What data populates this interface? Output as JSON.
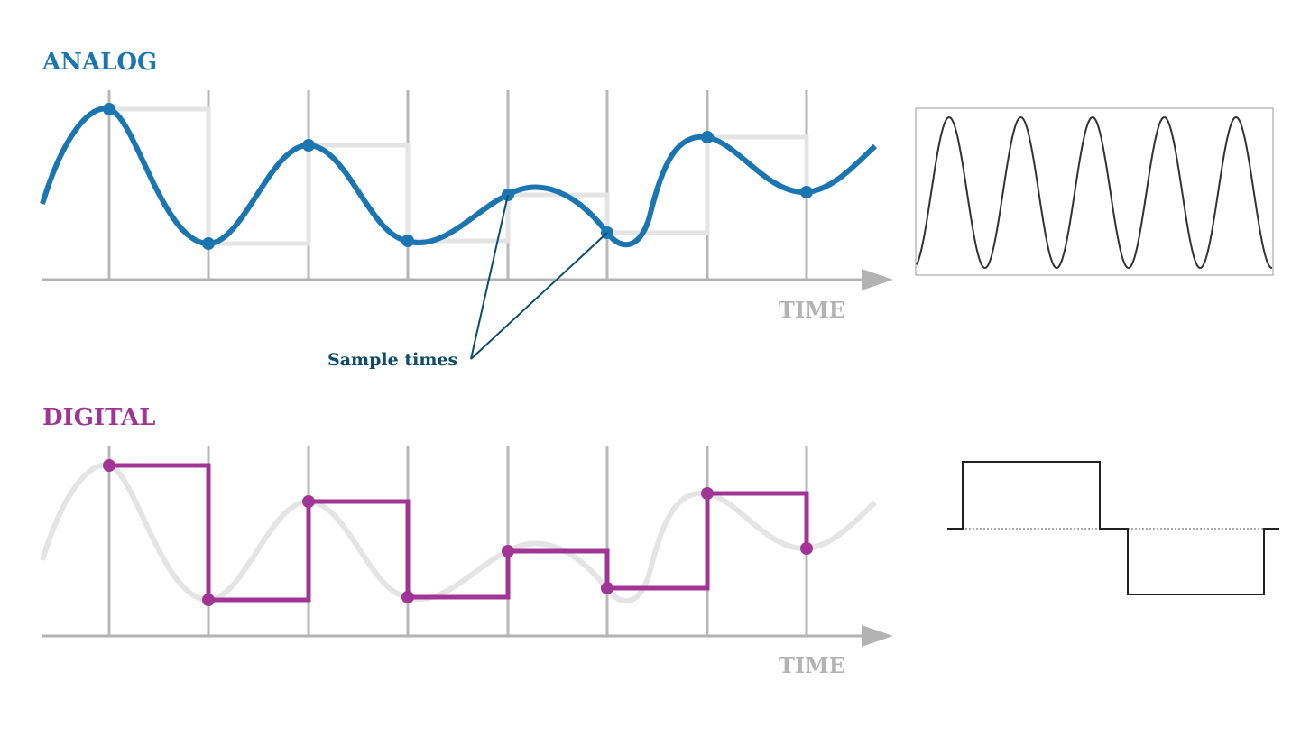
{
  "analog": {
    "title": "ANALOG",
    "axis_label": "TIME",
    "annotation": "Sample times"
  },
  "digital": {
    "title": "DIGITAL",
    "axis_label": "TIME"
  }
}
